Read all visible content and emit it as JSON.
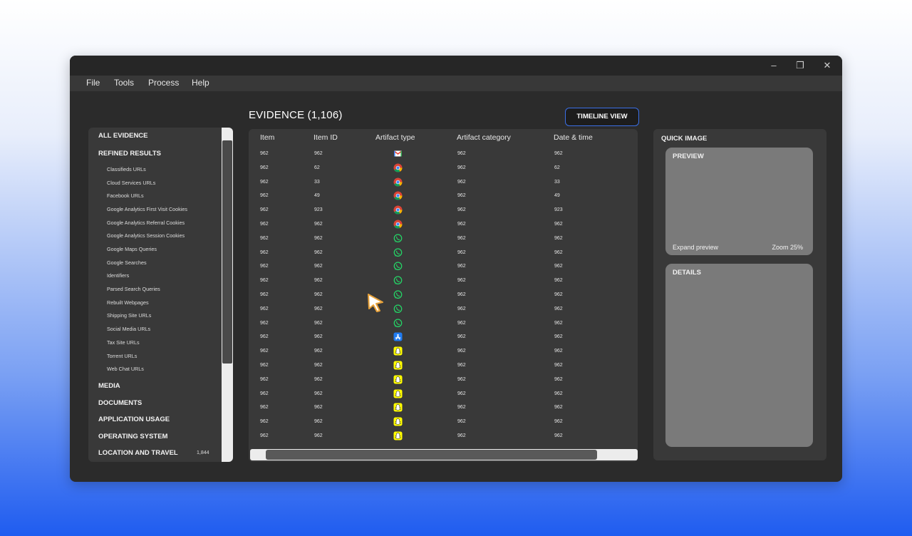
{
  "window": {
    "controls": {
      "minimize": "–",
      "restore": "❐",
      "close": "✕"
    }
  },
  "menu": [
    "File",
    "Tools",
    "Process",
    "Help"
  ],
  "evidence": {
    "title": "EVIDENCE (1,106)",
    "timeline_button": "TIMELINE VIEW"
  },
  "sidebar": {
    "all_evidence": "ALL EVIDENCE",
    "refined_results": "REFINED RESULTS",
    "sub_items": [
      "Classifieds URLs",
      "Cloud Services URLs",
      "Facebook URLs",
      "Google Analytics First Visit Cookies",
      "Google Analytics Referral Cookies",
      "Google Analytics Session Cookies",
      "Google Maps Queries",
      "Google Searches",
      "Identifiers",
      "Parsed Search Queries",
      "Rebuilt Webpages",
      "Shipping Site URLs",
      "Social Media URLs",
      "Tax Site URLs",
      "Torrent URLs",
      "Web Chat URLs"
    ],
    "sections": [
      {
        "label": "MEDIA",
        "count": ""
      },
      {
        "label": "DOCUMENTS",
        "count": ""
      },
      {
        "label": "APPLICATION USAGE",
        "count": ""
      },
      {
        "label": "OPERATING SYSTEM",
        "count": ""
      },
      {
        "label": "LOCATION AND TRAVEL",
        "count": "1,844"
      }
    ]
  },
  "table": {
    "columns": [
      "Item",
      "Item ID",
      "Artifact type",
      "Artifact category",
      "Date & time"
    ],
    "rows": [
      {
        "item": "962",
        "item_id": "962",
        "icon": "gmail",
        "category": "962",
        "date": "962"
      },
      {
        "item": "962",
        "item_id": "62",
        "icon": "chrome",
        "category": "962",
        "date": "62"
      },
      {
        "item": "962",
        "item_id": "33",
        "icon": "chrome",
        "category": "962",
        "date": "33"
      },
      {
        "item": "962",
        "item_id": "49",
        "icon": "chrome",
        "category": "962",
        "date": "49"
      },
      {
        "item": "962",
        "item_id": "923",
        "icon": "chrome",
        "category": "962",
        "date": "923"
      },
      {
        "item": "962",
        "item_id": "962",
        "icon": "chrome",
        "category": "962",
        "date": "962"
      },
      {
        "item": "962",
        "item_id": "962",
        "icon": "whatsapp",
        "category": "962",
        "date": "962"
      },
      {
        "item": "962",
        "item_id": "962",
        "icon": "whatsapp",
        "category": "962",
        "date": "962"
      },
      {
        "item": "962",
        "item_id": "962",
        "icon": "whatsapp",
        "category": "962",
        "date": "962"
      },
      {
        "item": "962",
        "item_id": "962",
        "icon": "whatsapp",
        "category": "962",
        "date": "962"
      },
      {
        "item": "962",
        "item_id": "962",
        "icon": "whatsapp",
        "category": "962",
        "date": "962"
      },
      {
        "item": "962",
        "item_id": "962",
        "icon": "whatsapp",
        "category": "962",
        "date": "962"
      },
      {
        "item": "962",
        "item_id": "962",
        "icon": "whatsapp",
        "category": "962",
        "date": "962"
      },
      {
        "item": "962",
        "item_id": "962",
        "icon": "app-store",
        "category": "962",
        "date": "962"
      },
      {
        "item": "962",
        "item_id": "962",
        "icon": "snapchat",
        "category": "962",
        "date": "962"
      },
      {
        "item": "962",
        "item_id": "962",
        "icon": "snapchat",
        "category": "962",
        "date": "962"
      },
      {
        "item": "962",
        "item_id": "962",
        "icon": "snapchat",
        "category": "962",
        "date": "962"
      },
      {
        "item": "962",
        "item_id": "962",
        "icon": "snapchat",
        "category": "962",
        "date": "962"
      },
      {
        "item": "962",
        "item_id": "962",
        "icon": "snapchat",
        "category": "962",
        "date": "962"
      },
      {
        "item": "962",
        "item_id": "962",
        "icon": "snapchat",
        "category": "962",
        "date": "962"
      },
      {
        "item": "962",
        "item_id": "962",
        "icon": "snapchat",
        "category": "962",
        "date": "962"
      }
    ]
  },
  "quick_image": {
    "title": "QUICK IMAGE",
    "preview": {
      "title": "PREVIEW",
      "expand": "Expand preview",
      "zoom": "Zoom 25%"
    },
    "details": {
      "title": "DETAILS"
    }
  },
  "colors": {
    "accent": "#3b6fe6",
    "window_bg": "#2b2b2b",
    "panel_bg": "#393939",
    "card_bg": "#7a7a7a"
  }
}
